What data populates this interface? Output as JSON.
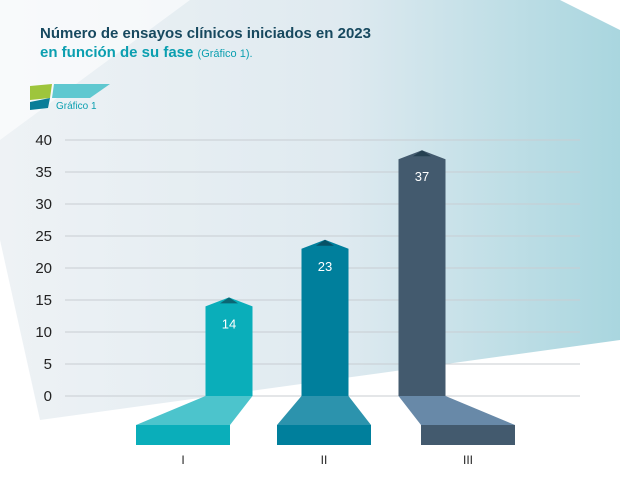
{
  "header": {
    "title_line1": "Número de ensayos clínicos iniciados en 2023",
    "title_line2": "en función de su fase",
    "title_note": "(Gráfico 1)."
  },
  "tag": {
    "label": "Gráfico 1"
  },
  "colors": {
    "title_dark": "#17495f",
    "title_teal": "#0b9fb0",
    "bar_1": "#0aaeba",
    "bar_2": "#007f9c",
    "bar_3": "#435a6e",
    "grid": "#c8cdd2"
  },
  "chart_data": {
    "type": "bar",
    "categories": [
      "I",
      "II",
      "III"
    ],
    "values": [
      14,
      23,
      37
    ],
    "data_labels": [
      "14",
      "23",
      "37"
    ],
    "y_ticks": [
      "0",
      "5",
      "10",
      "15",
      "20",
      "25",
      "30",
      "35",
      "40"
    ],
    "ylim": [
      0,
      40
    ],
    "grid": true
  }
}
